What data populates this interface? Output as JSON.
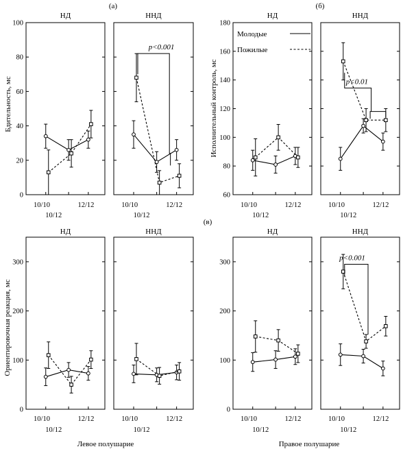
{
  "figure": {
    "label_a": "(а)",
    "label_b": "(б)",
    "label_c": "(в)",
    "bottom_left": "Левое полушарие",
    "bottom_right": "Правое полушарие"
  },
  "legend": {
    "young": "Молодые",
    "old": "Пожилые"
  },
  "chart_data": [
    {
      "type": "line",
      "id": "a",
      "ylabel": "Бдительность, мс",
      "ylim": [
        0,
        100
      ],
      "yticks": [
        0,
        20,
        40,
        60,
        80,
        100
      ],
      "xticks": [
        "10/10",
        "10/12",
        "12/12"
      ],
      "panels": [
        {
          "title": "НД",
          "series": [
            {
              "name": "Молодые",
              "values": [
                34,
                26,
                32
              ],
              "errors": [
                7,
                6,
                5
              ]
            },
            {
              "name": "Пожилые",
              "values": [
                13,
                24,
                41
              ],
              "errors": [
                13,
                8,
                8
              ]
            }
          ]
        },
        {
          "title": "ННД",
          "annotation": "p<0.001",
          "series": [
            {
              "name": "Молодые",
              "values": [
                35,
                19,
                26
              ],
              "errors": [
                8,
                6,
                6
              ]
            },
            {
              "name": "Пожилые",
              "values": [
                68,
                7,
                11
              ],
              "errors": [
                14,
                7,
                7
              ]
            }
          ]
        }
      ]
    },
    {
      "type": "line",
      "id": "b",
      "ylabel": "Исполнительный контроль, мс",
      "ylim": [
        60,
        180
      ],
      "yticks": [
        60,
        80,
        100,
        120,
        140,
        160,
        180
      ],
      "xticks": [
        "10/10",
        "10/12",
        "12/12"
      ],
      "panels": [
        {
          "title": "НД",
          "series": [
            {
              "name": "Молодые",
              "values": [
                84,
                81,
                87
              ],
              "errors": [
                7,
                6,
                6
              ]
            },
            {
              "name": "Пожилые",
              "values": [
                86,
                100,
                86
              ],
              "errors": [
                13,
                9,
                7
              ]
            }
          ]
        },
        {
          "title": "ННД",
          "annotation": "p<0.01",
          "series": [
            {
              "name": "Молодые",
              "values": [
                85,
                108,
                97
              ],
              "errors": [
                8,
                5,
                6
              ]
            },
            {
              "name": "Пожилые",
              "values": [
                153,
                112,
                112
              ],
              "errors": [
                13,
                8,
                8
              ]
            }
          ]
        }
      ]
    },
    {
      "type": "line",
      "id": "c",
      "ylabel": "Ориентировочная реакция, мс",
      "ylim": [
        0,
        350
      ],
      "yticks": [
        0,
        100,
        200,
        300
      ],
      "xticks": [
        "10/10",
        "10/12",
        "12/12"
      ],
      "panels": [
        {
          "title": "НД",
          "series": [
            {
              "name": "Молодые",
              "values": [
                66,
                80,
                73
              ],
              "errors": [
                18,
                15,
                14
              ]
            },
            {
              "name": "Пожилые",
              "values": [
                110,
                50,
                101
              ],
              "errors": [
                27,
                17,
                18
              ]
            }
          ]
        },
        {
          "title": "ННД",
          "series": [
            {
              "name": "Молодые",
              "values": [
                72,
                70,
                75
              ],
              "errors": [
                18,
                14,
                15
              ]
            },
            {
              "name": "Пожилые",
              "values": [
                102,
                68,
                77
              ],
              "errors": [
                32,
                17,
                18
              ]
            }
          ]
        },
        {
          "title": "НД",
          "series": [
            {
              "name": "Молодые",
              "values": [
                96,
                101,
                107
              ],
              "errors": [
                19,
                18,
                16
              ]
            },
            {
              "name": "Пожилые",
              "values": [
                148,
                140,
                113
              ],
              "errors": [
                32,
                22,
                18
              ]
            }
          ]
        },
        {
          "title": "ННД",
          "annotation": "p<0.001",
          "series": [
            {
              "name": "Молодые",
              "values": [
                111,
                108,
                83
              ],
              "errors": [
                22,
                14,
                15
              ]
            },
            {
              "name": "Пожилые",
              "values": [
                280,
                138,
                169
              ],
              "errors": [
                35,
                14,
                20
              ]
            }
          ]
        }
      ]
    }
  ]
}
